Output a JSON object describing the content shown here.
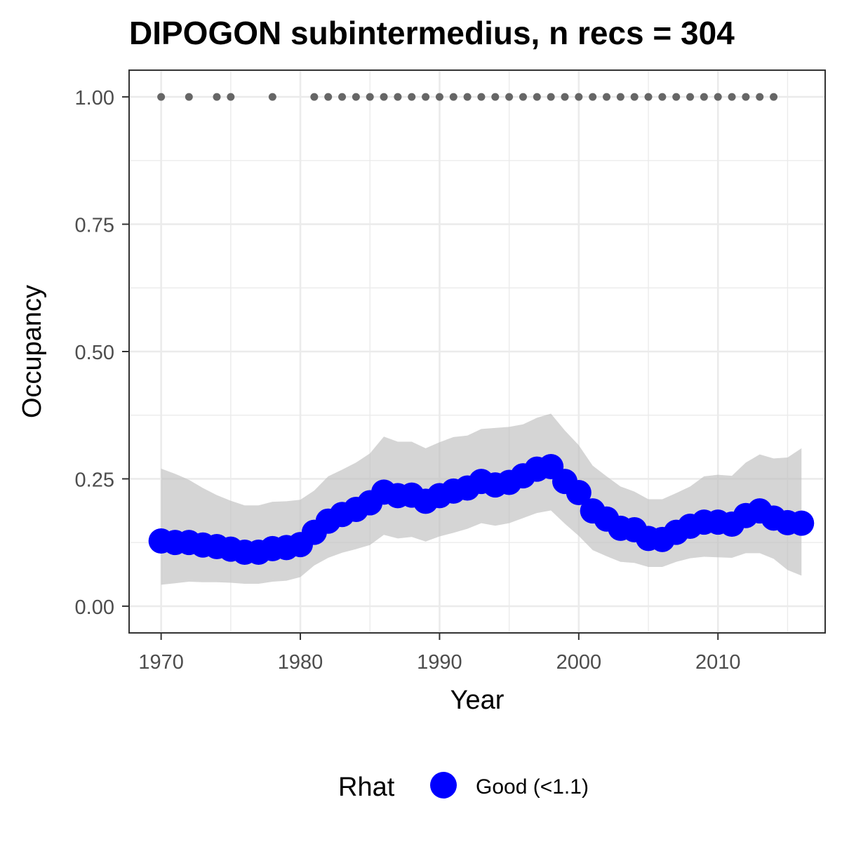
{
  "chart_data": {
    "type": "line",
    "title": "DIPOGON subintermedius, n recs = 304",
    "xlabel": "Year",
    "ylabel": "Occupancy",
    "xlim": [
      1967.7,
      2017.7
    ],
    "ylim": [
      -0.0525,
      1.0525
    ],
    "x_ticks": [
      1970,
      1980,
      1990,
      2000,
      2010
    ],
    "y_ticks": [
      0,
      0.25,
      0.5,
      0.75,
      1
    ],
    "x_tick_labels": [
      "1970",
      "1980",
      "1990",
      "2000",
      "2010"
    ],
    "y_tick_labels": [
      "0.00",
      "0.25",
      "0.50",
      "0.75",
      "1.00"
    ],
    "grid": true,
    "legend": {
      "title": "Rhat",
      "position": "bottom",
      "entries": [
        {
          "label": "Good (<1.1)",
          "color": "#0000ff"
        }
      ]
    },
    "series": [
      {
        "name": "Good (<1.1)",
        "color": "#0000ff",
        "x": [
          1970,
          1971,
          1972,
          1973,
          1974,
          1975,
          1976,
          1977,
          1978,
          1979,
          1980,
          1981,
          1982,
          1983,
          1984,
          1985,
          1986,
          1987,
          1988,
          1989,
          1990,
          1991,
          1992,
          1993,
          1994,
          1995,
          1996,
          1997,
          1998,
          1999,
          2000,
          2001,
          2002,
          2003,
          2004,
          2005,
          2006,
          2007,
          2008,
          2009,
          2010,
          2011,
          2012,
          2013,
          2014,
          2015,
          2016
        ],
        "values": [
          0.128,
          0.125,
          0.125,
          0.12,
          0.117,
          0.112,
          0.106,
          0.106,
          0.113,
          0.115,
          0.121,
          0.145,
          0.167,
          0.18,
          0.19,
          0.203,
          0.224,
          0.217,
          0.218,
          0.206,
          0.217,
          0.226,
          0.232,
          0.245,
          0.238,
          0.243,
          0.256,
          0.269,
          0.274,
          0.245,
          0.223,
          0.187,
          0.171,
          0.153,
          0.15,
          0.133,
          0.131,
          0.145,
          0.157,
          0.165,
          0.165,
          0.161,
          0.178,
          0.187,
          0.173,
          0.164,
          0.163
        ],
        "lower": [
          0.042,
          0.045,
          0.048,
          0.047,
          0.047,
          0.046,
          0.044,
          0.044,
          0.048,
          0.05,
          0.057,
          0.08,
          0.095,
          0.105,
          0.112,
          0.12,
          0.14,
          0.133,
          0.136,
          0.127,
          0.137,
          0.144,
          0.152,
          0.163,
          0.158,
          0.163,
          0.173,
          0.183,
          0.188,
          0.162,
          0.138,
          0.11,
          0.098,
          0.087,
          0.085,
          0.077,
          0.077,
          0.087,
          0.094,
          0.097,
          0.096,
          0.095,
          0.104,
          0.104,
          0.093,
          0.071,
          0.06
        ],
        "upper": [
          0.27,
          0.26,
          0.248,
          0.232,
          0.218,
          0.207,
          0.198,
          0.198,
          0.205,
          0.206,
          0.209,
          0.227,
          0.255,
          0.268,
          0.282,
          0.3,
          0.333,
          0.323,
          0.323,
          0.31,
          0.322,
          0.332,
          0.335,
          0.348,
          0.35,
          0.352,
          0.357,
          0.37,
          0.378,
          0.345,
          0.316,
          0.276,
          0.255,
          0.235,
          0.225,
          0.21,
          0.21,
          0.222,
          0.235,
          0.255,
          0.258,
          0.256,
          0.282,
          0.298,
          0.29,
          0.292,
          0.31
        ]
      },
      {
        "name": "",
        "color": "#666666",
        "type": "scatter",
        "x": [
          1970,
          1972,
          1974,
          1975,
          1978,
          1981,
          1982,
          1983,
          1984,
          1985,
          1986,
          1987,
          1988,
          1989,
          1990,
          1991,
          1992,
          1993,
          1994,
          1995,
          1996,
          1997,
          1998,
          1999,
          2000,
          2001,
          2002,
          2003,
          2004,
          2005,
          2006,
          2007,
          2008,
          2009,
          2010,
          2011,
          2012,
          2013,
          2014
        ],
        "values": [
          1,
          1,
          1,
          1,
          1,
          1,
          1,
          1,
          1,
          1,
          1,
          1,
          1,
          1,
          1,
          1,
          1,
          1,
          1,
          1,
          1,
          1,
          1,
          1,
          1,
          1,
          1,
          1,
          1,
          1,
          1,
          1,
          1,
          1,
          1,
          1,
          1,
          1,
          1
        ]
      }
    ],
    "colors": {
      "ribbon": "#bfbfbf",
      "grid": "#ebebeb",
      "panel_border": "#333333",
      "tick_text": "#4d4d4d"
    }
  }
}
